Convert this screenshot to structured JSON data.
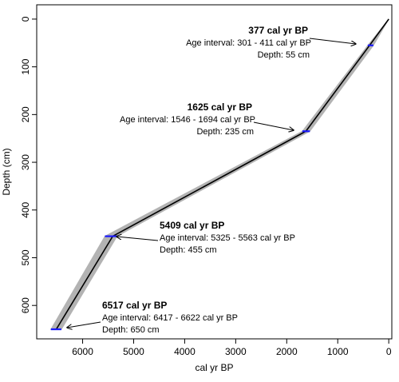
{
  "chart_data": {
    "type": "line",
    "title": "",
    "xlabel": "cal yr BP",
    "ylabel": "Depth (cm)",
    "xlim": [
      6900,
      -60
    ],
    "ylim": [
      -30,
      670
    ],
    "x_reversed": true,
    "y_reversed": true,
    "x_ticks": [
      6000,
      5000,
      4000,
      3000,
      2000,
      1000,
      0
    ],
    "y_ticks": [
      0,
      100,
      200,
      300,
      400,
      500,
      600
    ],
    "grid": false,
    "legend": "none",
    "colors": {
      "line": "#000000",
      "envelope": "#b3b3b3",
      "date_marker": "#1a1aff",
      "arrow": "#000000",
      "axis": "#000000"
    },
    "series": [
      {
        "x": [
          0,
          377,
          1625,
          5409,
          6517
        ],
        "y": [
          0,
          55,
          235,
          455,
          650
        ],
        "lower": [
          0,
          301,
          1546,
          5325,
          6417
        ],
        "upper": [
          0,
          411,
          1694,
          5563,
          6622
        ]
      }
    ],
    "annotations": [
      {
        "title": "377 cal yr BP",
        "interval": "Age interval: 301 -  411 cal yr BP",
        "depth": "Depth: 55 cm",
        "x": 377,
        "y": 55,
        "lo": 301,
        "hi": 411
      },
      {
        "title": "1625 cal yr BP",
        "interval": "Age interval: 1546 - 1694 cal yr BP",
        "depth": "Depth: 235 cm",
        "x": 1625,
        "y": 235,
        "lo": 1546,
        "hi": 1694
      },
      {
        "title": "5409 cal yr BP",
        "interval": "Age interval: 5325 - 5563 cal yr BP",
        "depth": "Depth: 455 cm",
        "x": 5409,
        "y": 455,
        "lo": 5325,
        "hi": 5563
      },
      {
        "title": "6517 cal yr BP",
        "interval": "Age interval: 6417 - 6622 cal yr BP",
        "depth": "Depth: 650 cm",
        "x": 6517,
        "y": 650,
        "lo": 6417,
        "hi": 6622
      }
    ]
  }
}
